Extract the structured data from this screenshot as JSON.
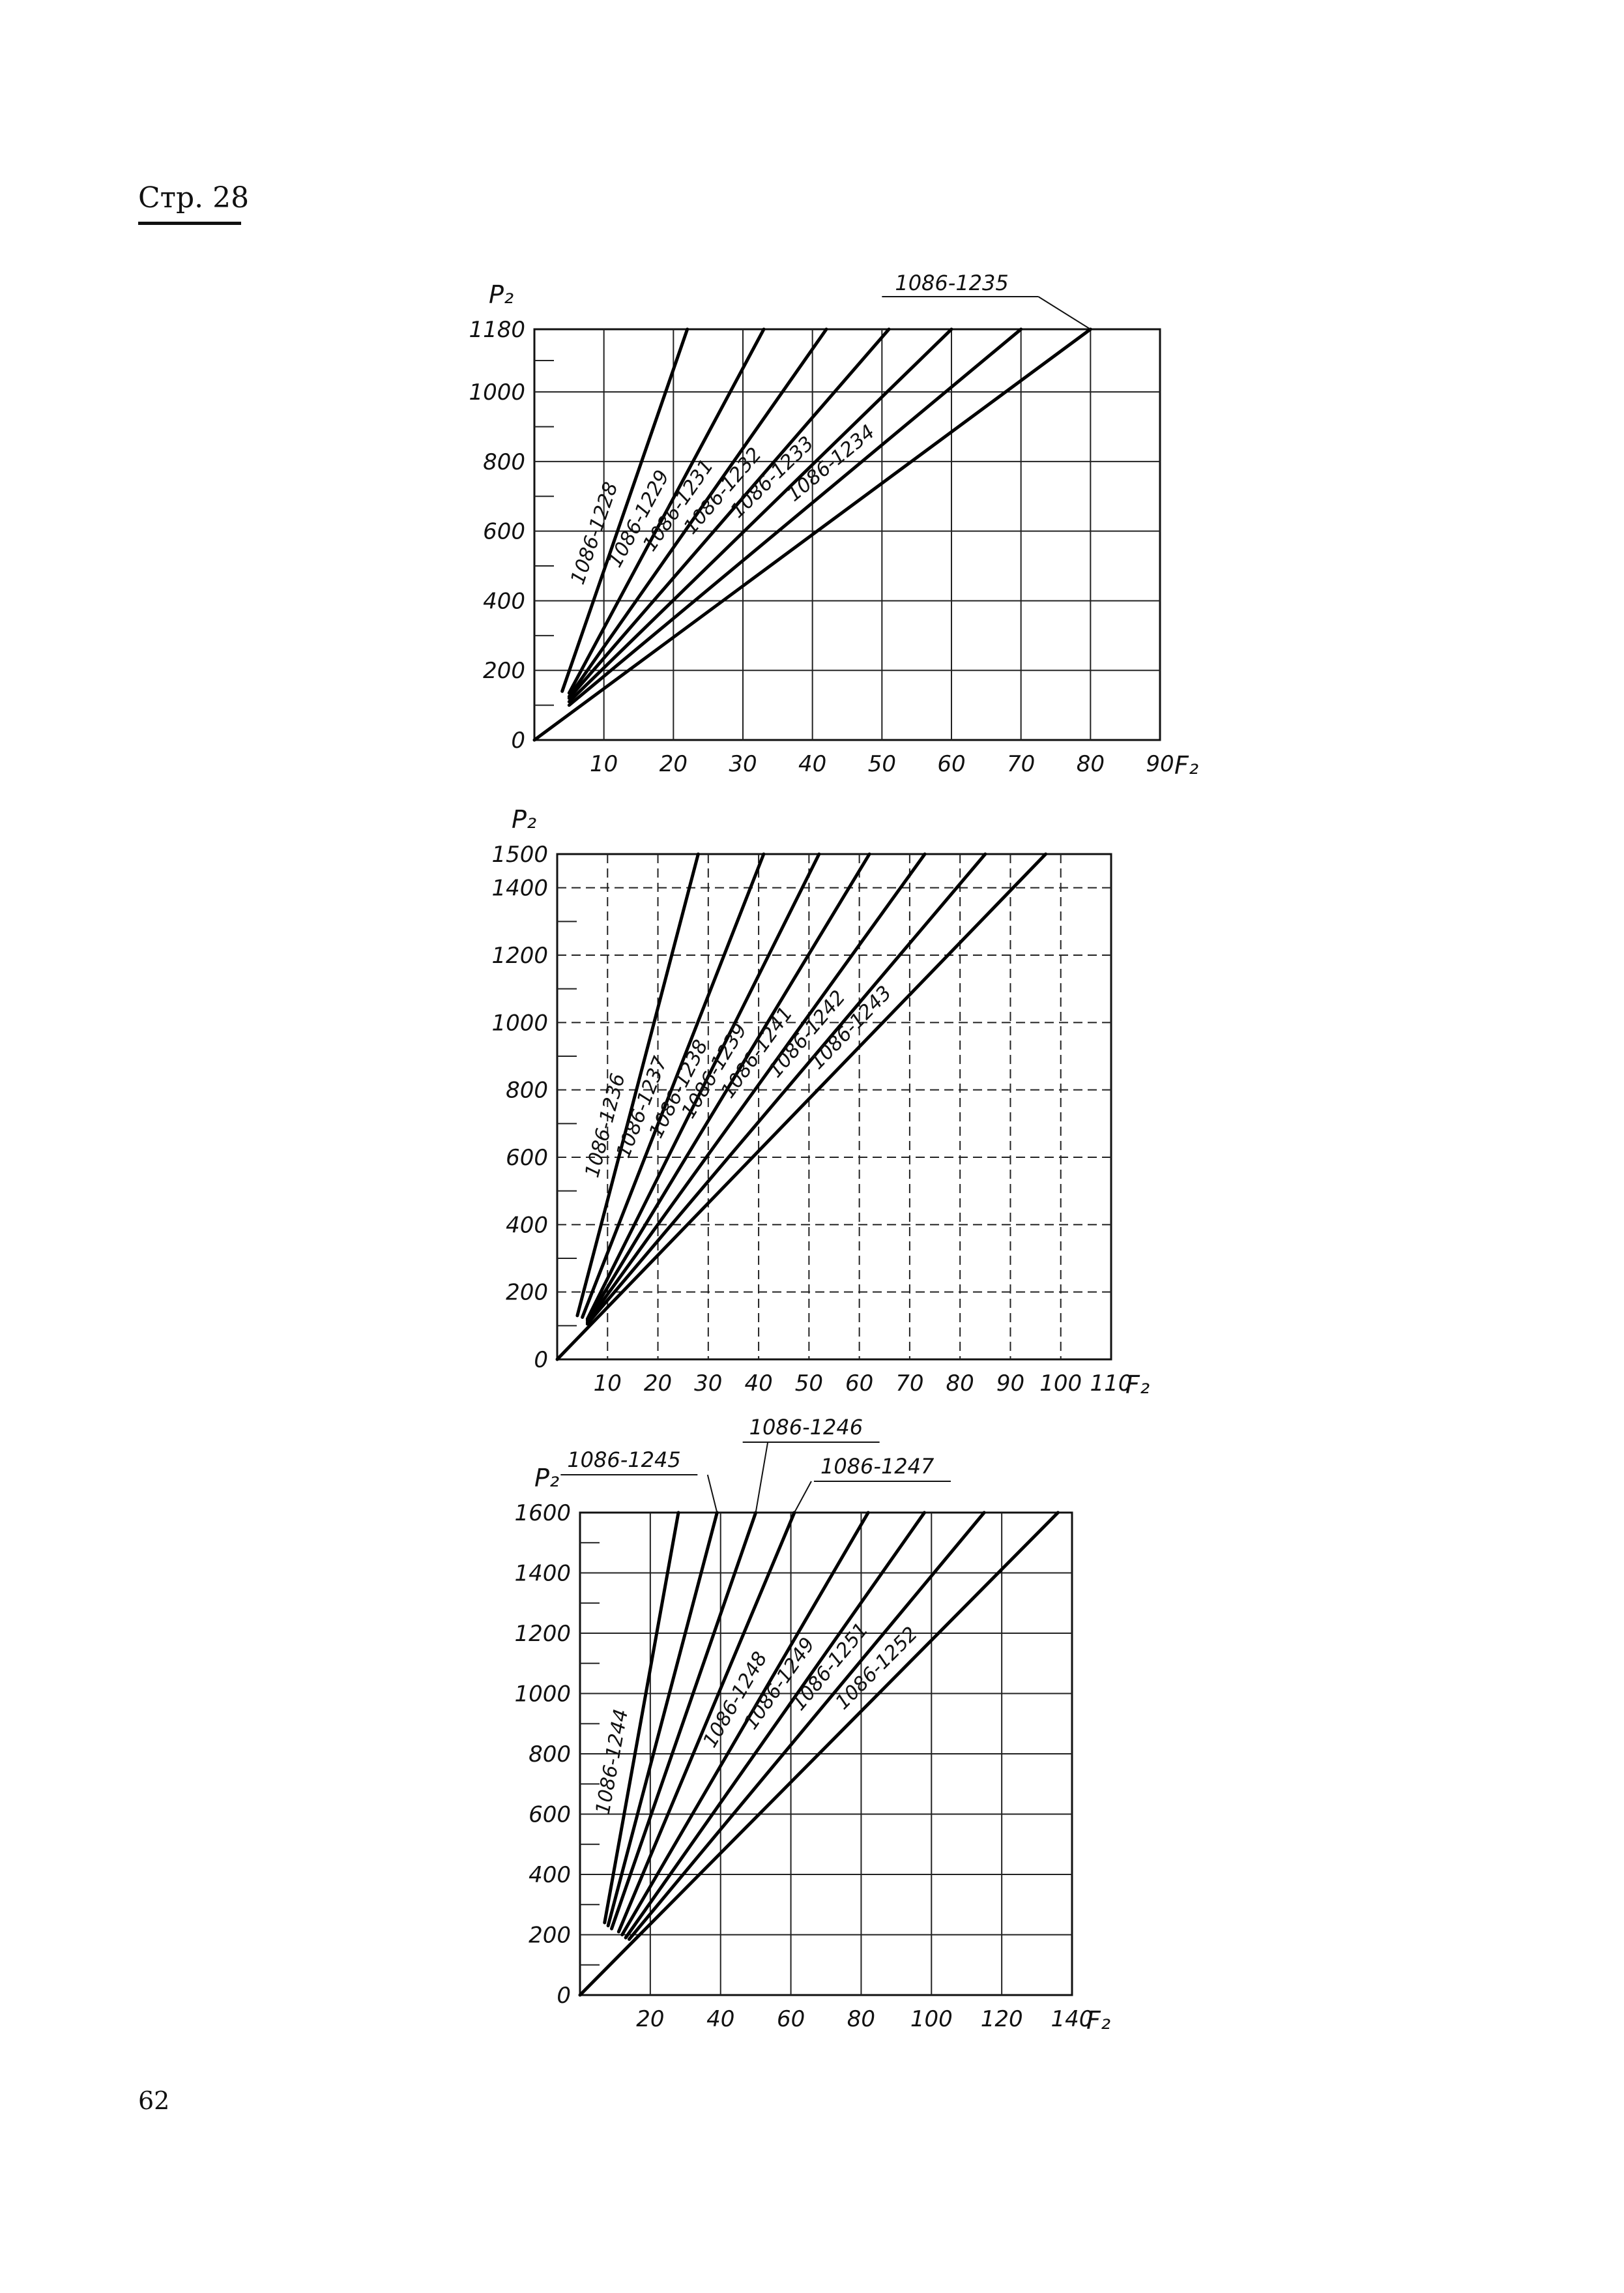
{
  "page": {
    "header": "Стр. 28",
    "page_number": "62"
  },
  "chart_data": [
    {
      "type": "line",
      "title": "",
      "xlabel": "F₂",
      "ylabel": "P₂",
      "xlim": [
        0,
        90
      ],
      "ylim": [
        0,
        1180
      ],
      "x_ticks": [
        10,
        20,
        30,
        40,
        50,
        60,
        70,
        80,
        90
      ],
      "y_ticks": [
        0,
        200,
        400,
        600,
        800,
        1000,
        1180
      ],
      "grid": true,
      "series": [
        {
          "name": "1086-1228",
          "x": [
            4,
            22
          ],
          "y": [
            140,
            1180
          ]
        },
        {
          "name": "1086-1229",
          "x": [
            5,
            33
          ],
          "y": [
            135,
            1180
          ]
        },
        {
          "name": "1086-1231",
          "x": [
            5,
            42
          ],
          "y": [
            125,
            1180
          ]
        },
        {
          "name": "1086-1232",
          "x": [
            5,
            51
          ],
          "y": [
            120,
            1180
          ]
        },
        {
          "name": "1086-1233",
          "x": [
            5,
            60
          ],
          "y": [
            110,
            1180
          ]
        },
        {
          "name": "1086-1234",
          "x": [
            5,
            70
          ],
          "y": [
            100,
            1180
          ]
        },
        {
          "name": "1086-1235",
          "x": [
            0,
            80
          ],
          "y": [
            0,
            1180
          ]
        }
      ]
    },
    {
      "type": "line",
      "title": "",
      "xlabel": "F₂",
      "ylabel": "P₂",
      "xlim": [
        0,
        110
      ],
      "ylim": [
        0,
        1500
      ],
      "x_ticks": [
        10,
        20,
        30,
        40,
        50,
        60,
        70,
        80,
        90,
        100,
        110
      ],
      "y_ticks": [
        0,
        200,
        400,
        600,
        800,
        1000,
        1200,
        1400,
        1500
      ],
      "grid": true,
      "series": [
        {
          "name": "1086-1236",
          "x": [
            4,
            28
          ],
          "y": [
            130,
            1500
          ]
        },
        {
          "name": "1086-1237",
          "x": [
            5,
            41
          ],
          "y": [
            125,
            1500
          ]
        },
        {
          "name": "1086-1238",
          "x": [
            6,
            52
          ],
          "y": [
            120,
            1500
          ]
        },
        {
          "name": "1086-1239",
          "x": [
            6,
            62
          ],
          "y": [
            115,
            1500
          ]
        },
        {
          "name": "1086-1241",
          "x": [
            6,
            73
          ],
          "y": [
            110,
            1500
          ]
        },
        {
          "name": "1086-1242",
          "x": [
            6,
            85
          ],
          "y": [
            105,
            1500
          ]
        },
        {
          "name": "1086-1243",
          "x": [
            0,
            97
          ],
          "y": [
            0,
            1500
          ]
        }
      ]
    },
    {
      "type": "line",
      "title": "",
      "xlabel": "F₂",
      "ylabel": "P₂",
      "xlim": [
        0,
        140
      ],
      "ylim": [
        0,
        1600
      ],
      "x_ticks": [
        20,
        40,
        60,
        80,
        100,
        120,
        140
      ],
      "y_ticks": [
        0,
        200,
        400,
        600,
        800,
        1000,
        1200,
        1400,
        1600
      ],
      "grid": true,
      "series": [
        {
          "name": "1086-1244",
          "x": [
            7,
            28
          ],
          "y": [
            240,
            1600
          ]
        },
        {
          "name": "1086-1245",
          "x": [
            8,
            39
          ],
          "y": [
            230,
            1600
          ]
        },
        {
          "name": "1086-1246",
          "x": [
            9,
            50
          ],
          "y": [
            220,
            1600
          ]
        },
        {
          "name": "1086-1247",
          "x": [
            11,
            61
          ],
          "y": [
            210,
            1600
          ]
        },
        {
          "name": "1086-1248",
          "x": [
            12,
            82
          ],
          "y": [
            200,
            1600
          ]
        },
        {
          "name": "1086-1249",
          "x": [
            13,
            98
          ],
          "y": [
            190,
            1600
          ]
        },
        {
          "name": "1086-1251",
          "x": [
            14,
            115
          ],
          "y": [
            185,
            1600
          ]
        },
        {
          "name": "1086-1252",
          "x": [
            0,
            136
          ],
          "y": [
            0,
            1600
          ]
        }
      ]
    }
  ]
}
